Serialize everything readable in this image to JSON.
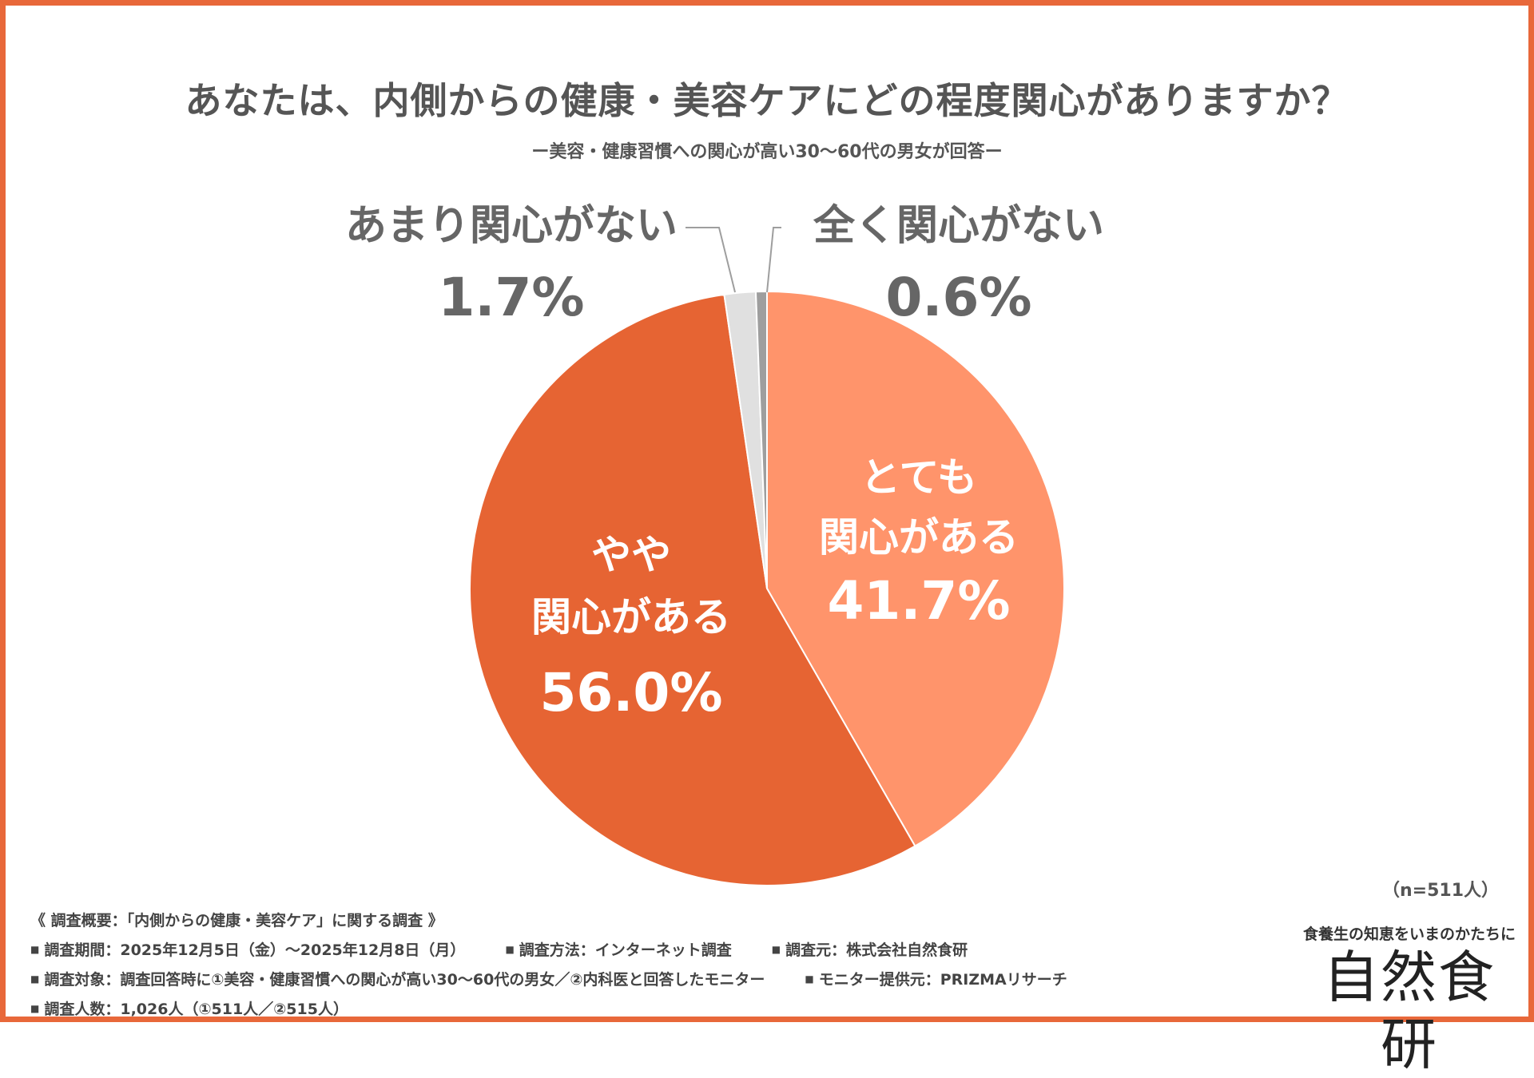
{
  "title": "あなたは、内側からの健康・美容ケアにどの程度関心がありますか？",
  "subtitle": "ー美容・健康習慣への関心が高い30〜60代の男女が回答ー",
  "chart_data": {
    "type": "pie",
    "title": "あなたは、内側からの健康・美容ケアにどの程度関心がありますか？",
    "start": "top",
    "direction": "clockwise",
    "slices": [
      {
        "label_lines": [
          "とても",
          "関心がある"
        ],
        "value": 41.7,
        "display": "41.7%",
        "color": "#ff946b",
        "label_position": "inside"
      },
      {
        "label_lines": [
          "やや",
          "関心がある"
        ],
        "value": 56.0,
        "display": "56.0%",
        "color": "#e66433",
        "label_position": "inside"
      },
      {
        "label_lines": [
          "あまり関心がない"
        ],
        "value": 1.7,
        "display": "1.7%",
        "color": "#e0e0e0",
        "label_position": "outside-left"
      },
      {
        "label_lines": [
          "全く関心がない"
        ],
        "value": 0.6,
        "display": "0.6%",
        "color": "#9e9e9e",
        "label_position": "outside-right"
      }
    ],
    "inside_label_color": "#ffffff",
    "outside_label_color": "#666666"
  },
  "n_label": "（n=511人）",
  "notes": {
    "heading": "《 調査概要：「内側からの健康・美容ケア」に関する調査 》",
    "period": "調査期間：2025年12月5日（金）〜2025年12月8日（月）",
    "method": "調査方法：インターネット調査",
    "source": "調査元：株式会社自然食研",
    "target": "調査対象：調査回答時に①美容・健康習慣への関心が高い30〜60代の男女／②内科医と回答したモニター",
    "provider": "モニター提供元：PRIZMAリサーチ",
    "count": "調査人数：1,026人（①511人／②515人）"
  },
  "logo": {
    "tagline": "食養生の知恵をいまのかたちに",
    "name": "自然食研"
  },
  "colors": {
    "border": "#e8683a",
    "text": "#555555"
  }
}
